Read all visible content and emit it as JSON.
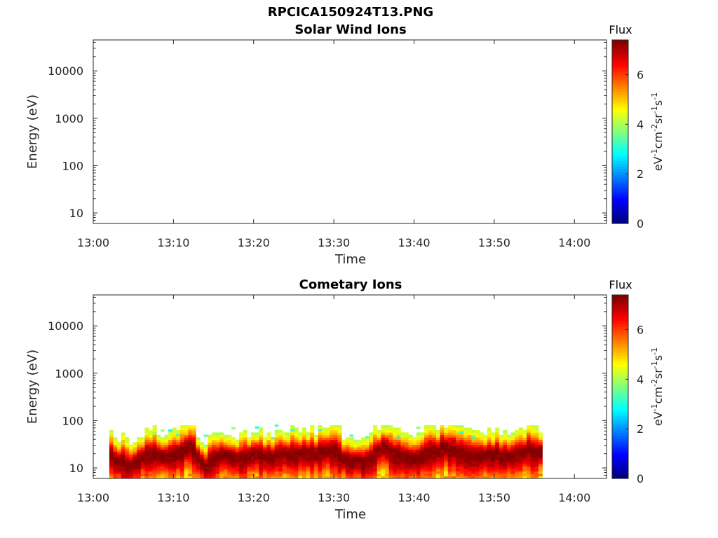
{
  "figure": {
    "title": "RPCICA150924T13.PNG"
  },
  "chart_data": [
    {
      "type": "heatmap",
      "title": "Solar Wind Ions",
      "xlabel": "Time",
      "ylabel": "Energy (eV)",
      "x_ticks": [
        "13:00",
        "13:10",
        "13:20",
        "13:30",
        "13:40",
        "13:50",
        "14:00"
      ],
      "xlim": [
        "13:00",
        "14:04"
      ],
      "y_scale": "log",
      "y_ticks": [
        10,
        100,
        1000,
        10000
      ],
      "y_tick_labels": [
        "10",
        "100",
        "1000",
        "10000"
      ],
      "ylim": [
        6,
        45000
      ],
      "colorbar": {
        "label": "Flux",
        "units": "eV-1cm-2sr-1s-1",
        "ticks": [
          "0",
          "2",
          "4",
          "6"
        ],
        "range": [
          0,
          7.4
        ],
        "colormap": "jet"
      },
      "data": "no counts recorded"
    },
    {
      "type": "heatmap",
      "title": "Cometary Ions",
      "xlabel": "Time",
      "ylabel": "Energy (eV)",
      "x_ticks": [
        "13:00",
        "13:10",
        "13:20",
        "13:30",
        "13:40",
        "13:50",
        "14:00"
      ],
      "xlim": [
        "13:00",
        "14:04"
      ],
      "y_scale": "log",
      "y_ticks": [
        10,
        100,
        1000,
        10000
      ],
      "y_tick_labels": [
        "10",
        "100",
        "1000",
        "10000"
      ],
      "ylim": [
        6,
        45000
      ],
      "colorbar": {
        "label": "Flux",
        "units": "eV-1cm-2sr-1s-1",
        "ticks": [
          "0",
          "2",
          "4",
          "6"
        ],
        "range": [
          0,
          7.4
        ],
        "colormap": "jet"
      },
      "data_time_range": [
        "13:02",
        "13:56"
      ],
      "peak_energy_eV": [
        [
          "13:02",
          22
        ],
        [
          "13:03",
          14
        ],
        [
          "13:05",
          12
        ],
        [
          "13:07",
          22
        ],
        [
          "13:09",
          18
        ],
        [
          "13:11",
          22
        ],
        [
          "13:12",
          30
        ],
        [
          "13:14",
          12
        ],
        [
          "13:16",
          20
        ],
        [
          "13:18",
          16
        ],
        [
          "13:20",
          22
        ],
        [
          "13:22",
          18
        ],
        [
          "13:24",
          20
        ],
        [
          "13:26",
          20
        ],
        [
          "13:28",
          22
        ],
        [
          "13:30",
          24
        ],
        [
          "13:32",
          15
        ],
        [
          "13:34",
          14
        ],
        [
          "13:36",
          30
        ],
        [
          "13:38",
          18
        ],
        [
          "13:40",
          16
        ],
        [
          "13:42",
          22
        ],
        [
          "13:44",
          28
        ],
        [
          "13:46",
          22
        ],
        [
          "13:48",
          18
        ],
        [
          "13:50",
          20
        ],
        [
          "13:52",
          18
        ],
        [
          "13:54",
          24
        ],
        [
          "13:56",
          22
        ]
      ]
    }
  ]
}
